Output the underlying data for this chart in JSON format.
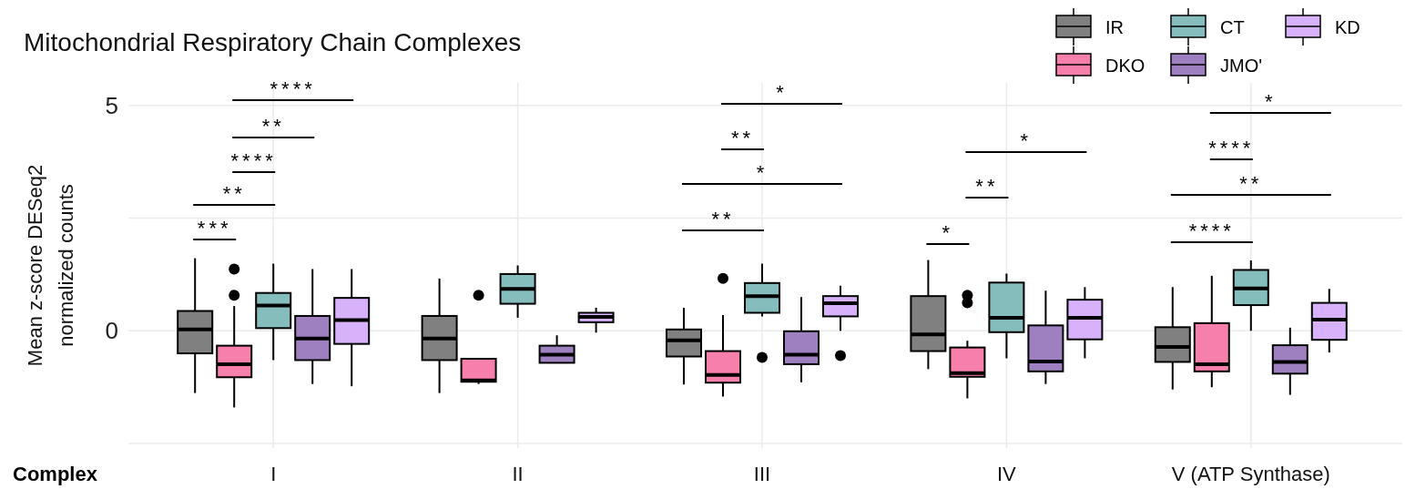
{
  "chart_data": {
    "type": "box",
    "title": "Mitochondrial Respiratory Chain Complexes",
    "xlabel": "Complex",
    "ylabel": "Mean z-score DESeq2\nnormalized counts",
    "categories": [
      "I",
      "II",
      "III",
      "IV",
      "V (ATP Synthase)"
    ],
    "ylim": [
      -2.6,
      5.5
    ],
    "yticks": [
      {
        "value": -2.5,
        "label": null
      },
      0,
      {
        "value": 2.5,
        "label": null
      },
      5
    ],
    "grid": true,
    "legend": "top right",
    "series": [
      {
        "name": "IR",
        "color": "#808080",
        "boxes": [
          {
            "low": -1.38,
            "q1": -0.5,
            "median": 0.03,
            "q3": 0.44,
            "high": 1.61
          },
          {
            "low": -1.38,
            "q1": -0.65,
            "median": -0.17,
            "q3": 0.33,
            "high": 1.16
          },
          {
            "low": -1.19,
            "q1": -0.57,
            "median": -0.21,
            "q3": 0.03,
            "high": 0.51
          },
          {
            "low": -0.85,
            "q1": -0.45,
            "median": -0.08,
            "q3": 0.77,
            "high": 1.57
          },
          {
            "low": -1.3,
            "q1": -0.69,
            "median": -0.36,
            "q3": 0.08,
            "high": 0.97
          }
        ]
      },
      {
        "name": "DKO",
        "color": "#f77fab",
        "boxes": [
          {
            "low": -1.7,
            "q1": -1.03,
            "median": -0.74,
            "q3": -0.33,
            "high": 0.55,
            "outliers": [
              1.37,
              0.79
            ]
          },
          {
            "low": -1.18,
            "q1": -1.13,
            "median": -1.1,
            "q3": -0.62,
            "high": -0.62,
            "outliers": [
              0.79
            ]
          },
          {
            "low": -1.46,
            "q1": -1.15,
            "median": -0.98,
            "q3": -0.45,
            "high": 0.35,
            "outliers": [
              1.16
            ]
          },
          {
            "low": -1.5,
            "q1": -1.02,
            "median": -0.94,
            "q3": -0.37,
            "high": -0.22,
            "outliers": [
              0.79,
              0.62
            ]
          },
          {
            "low": -1.25,
            "q1": -0.9,
            "median": -0.74,
            "q3": 0.17,
            "high": 1.22
          }
        ]
      },
      {
        "name": "CT",
        "color": "#85bcbc",
        "boxes": [
          {
            "low": -0.65,
            "q1": 0.06,
            "median": 0.56,
            "q3": 0.84,
            "high": 1.49
          },
          {
            "low": 0.29,
            "q1": 0.6,
            "median": 0.93,
            "q3": 1.26,
            "high": 1.45
          },
          {
            "low": 0.32,
            "q1": 0.4,
            "median": 0.77,
            "q3": 1.06,
            "high": 1.49,
            "outliers": [
              -0.59
            ]
          },
          {
            "low": -0.61,
            "q1": -0.03,
            "median": 0.29,
            "q3": 1.07,
            "high": 1.27
          },
          {
            "low": 0.0,
            "q1": 0.57,
            "median": 0.94,
            "q3": 1.35,
            "high": 1.56
          }
        ]
      },
      {
        "name": "JMO'",
        "color": "#9e7fc0",
        "boxes": [
          {
            "low": -1.18,
            "q1": -0.65,
            "median": -0.17,
            "q3": 0.33,
            "high": 1.37
          },
          {
            "low": -0.71,
            "q1": -0.71,
            "median": -0.53,
            "q3": -0.33,
            "high": -0.1
          },
          {
            "low": -1.14,
            "q1": -0.74,
            "median": -0.53,
            "q3": -0.01,
            "high": 0.75
          },
          {
            "low": -1.18,
            "q1": -0.9,
            "median": -0.68,
            "q3": 0.12,
            "high": 0.89
          },
          {
            "low": -1.42,
            "q1": -0.95,
            "median": -0.69,
            "q3": -0.32,
            "high": 0.07
          }
        ]
      },
      {
        "name": "KD",
        "color": "#d7b2fa",
        "boxes": [
          {
            "low": -1.23,
            "q1": -0.29,
            "median": 0.24,
            "q3": 0.73,
            "high": 1.37
          },
          {
            "low": -0.04,
            "q1": 0.19,
            "median": 0.31,
            "q3": 0.4,
            "high": 0.51
          },
          {
            "low": 0.0,
            "q1": 0.32,
            "median": 0.61,
            "q3": 0.77,
            "high": 1.0,
            "outliers": [
              -0.55
            ]
          },
          {
            "low": -0.61,
            "q1": -0.19,
            "median": 0.29,
            "q3": 0.69,
            "high": 0.97
          },
          {
            "low": -0.48,
            "q1": -0.2,
            "median": 0.25,
            "q3": 0.62,
            "high": 0.93
          }
        ]
      }
    ],
    "annotations": [
      "***",
      "**",
      "****",
      "**",
      "****",
      "**",
      "*",
      "**",
      "*",
      "*",
      "**",
      "*",
      "****",
      "**",
      "****",
      "*"
    ]
  }
}
